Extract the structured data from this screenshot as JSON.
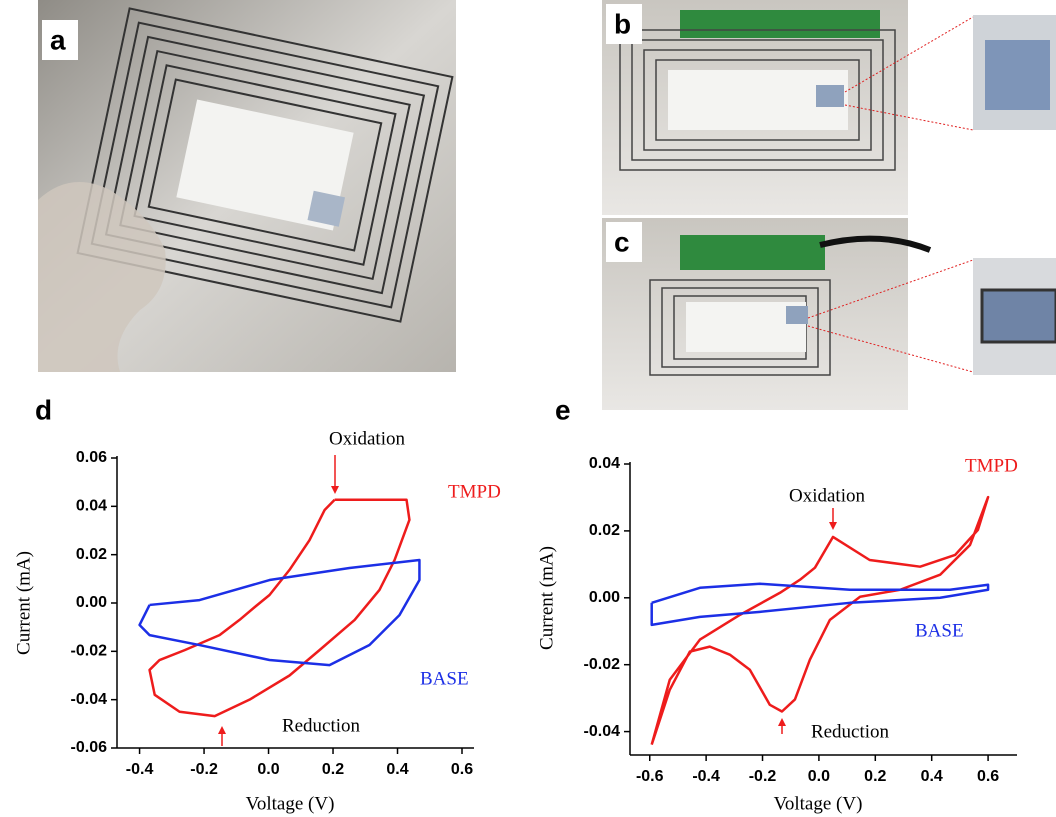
{
  "photos": [
    {
      "label": "a"
    },
    {
      "label": "b"
    },
    {
      "label": "c"
    }
  ],
  "chart_data": [
    {
      "type": "line",
      "panel_label": "d",
      "x_label": "Voltage (V)",
      "y_label": "Current (mA)",
      "xlim": [
        -0.47,
        0.6
      ],
      "ylim": [
        -0.06,
        0.06
      ],
      "xticks": [
        -0.4,
        -0.2,
        {
          "value": 0,
          "label": "0.0"
        },
        0.2,
        0.4,
        0.6
      ],
      "yticks": [
        -0.06,
        -0.04,
        -0.02,
        {
          "value": 0,
          "label": "0.00"
        },
        0.02,
        0.04,
        0.06
      ],
      "annotations": [
        "Oxidation",
        "Reduction"
      ],
      "series": [
        {
          "name": "TMPD",
          "color": "#ee1c1c",
          "x": [
            0.205,
            0.428,
            0.437,
            0.391,
            0.344,
            0.267,
            0.158,
            0.065,
            -0.059,
            -0.167,
            -0.276,
            -0.353,
            -0.369,
            -0.338,
            -0.26,
            -0.152,
            -0.09,
            -0.043,
            0.003,
            0.065,
            0.127,
            0.174,
            0.205
          ],
          "values": [
            0.0427,
            0.0427,
            0.0344,
            0.0178,
            0.0054,
            -0.007,
            -0.0195,
            -0.03,
            -0.04,
            -0.0468,
            -0.045,
            -0.038,
            -0.0277,
            -0.0236,
            -0.0195,
            -0.0133,
            -0.007,
            -0.0017,
            0.0033,
            0.0137,
            0.026,
            0.0385,
            0.0427
          ]
        },
        {
          "name": "BASE",
          "color": "#1c2fe6",
          "x": [
            -0.369,
            -0.214,
            0.003,
            0.251,
            0.468,
            0.468,
            0.406,
            0.313,
            0.189,
            0.003,
            -0.214,
            -0.369,
            -0.4,
            -0.369
          ],
          "values": [
            -0.0008,
            0.0012,
            0.0095,
            0.0145,
            0.0178,
            0.0095,
            -0.005,
            -0.0174,
            -0.0257,
            -0.0236,
            -0.0174,
            -0.0133,
            -0.0091,
            -0.0008
          ]
        }
      ]
    },
    {
      "type": "line",
      "panel_label": "e",
      "x_label": "Voltage (V)",
      "y_label": "Current (mA)",
      "xlim": [
        -0.67,
        0.66
      ],
      "ylim": [
        -0.047,
        0.04
      ],
      "xticks": [
        -0.6,
        -0.4,
        -0.2,
        {
          "value": 0,
          "label": "0.0"
        },
        0.2,
        0.4,
        0.6
      ],
      "yticks": [
        -0.04,
        -0.02,
        {
          "value": 0,
          "label": "0.00"
        },
        0.02,
        0.04
      ],
      "annotations": [
        "Oxidation",
        "Reduction"
      ],
      "series": [
        {
          "name": "TMPD",
          "color": "#ee1c1c",
          "x": [
            -0.593,
            -0.529,
            -0.422,
            -0.28,
            -0.138,
            -0.067,
            -0.014,
            0.05,
            0.18,
            0.359,
            0.483,
            0.564,
            0.6,
            0.536,
            0.43,
            0.288,
            0.146,
            0.039,
            -0.032,
            -0.085,
            -0.131,
            -0.174,
            -0.245,
            -0.316,
            -0.387,
            -0.458,
            -0.529,
            -0.593
          ],
          "values": [
            -0.0439,
            -0.0245,
            -0.0125,
            -0.0051,
            0.0015,
            0.0054,
            0.009,
            0.0182,
            0.0113,
            0.0093,
            0.0128,
            0.0203,
            0.0301,
            0.0158,
            0.0069,
            0.0024,
            0.0003,
            -0.0066,
            -0.0185,
            -0.0304,
            -0.034,
            -0.032,
            -0.0215,
            -0.017,
            -0.0146,
            -0.0161,
            -0.0275,
            -0.0439
          ]
        },
        {
          "name": "BASE",
          "color": "#1c2fe6",
          "x": [
            -0.593,
            -0.422,
            -0.209,
            0.11,
            0.465,
            0.6,
            0.6,
            0.43,
            0.11,
            -0.209,
            -0.422,
            -0.593,
            -0.593
          ],
          "values": [
            -0.0015,
            0.003,
            0.0042,
            0.0024,
            0.0024,
            0.0039,
            0.0024,
            0,
            -0.0015,
            -0.0042,
            -0.0057,
            -0.0081,
            -0.0015
          ]
        }
      ]
    }
  ]
}
